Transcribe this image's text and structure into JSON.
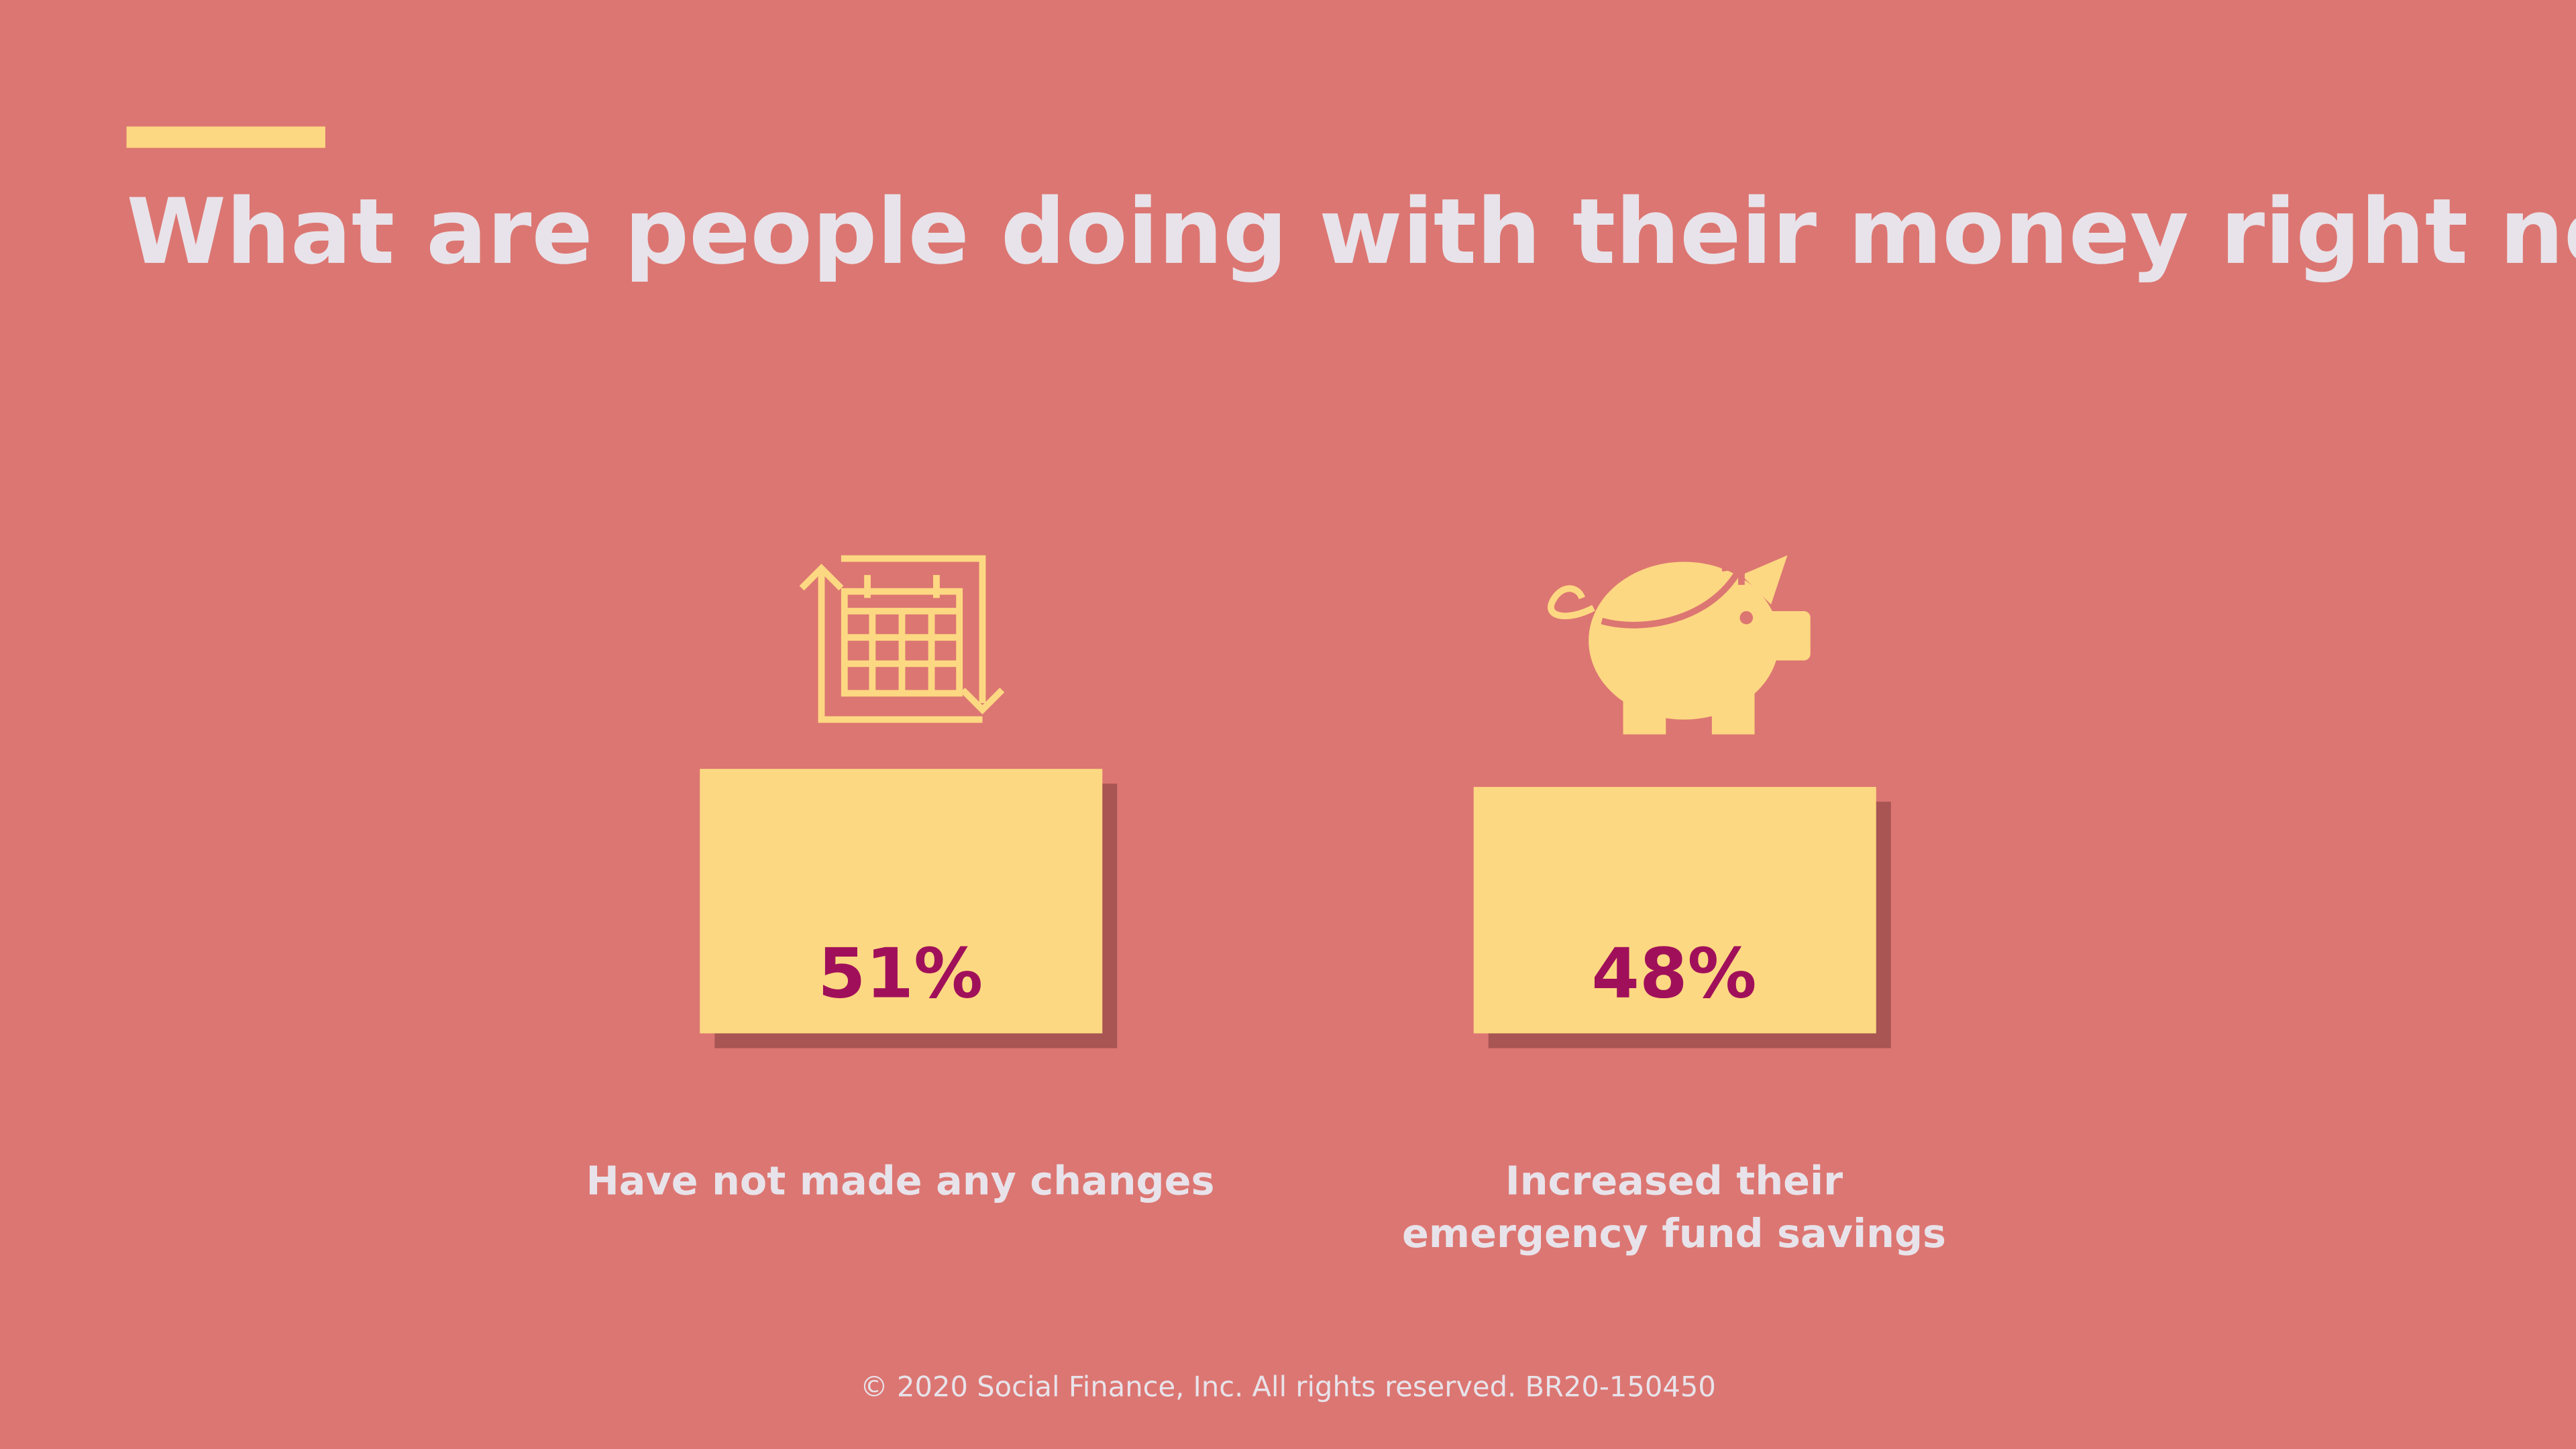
{
  "header": {
    "title": "What are people doing with their money right now?"
  },
  "stats": [
    {
      "value": "51%",
      "label": [
        "Have not made any changes"
      ]
    },
    {
      "value": "48%",
      "label": [
        "Increased their",
        "emergency fund savings"
      ]
    }
  ],
  "footer": {
    "text": "© 2020 Social Finance, Inc. All rights reserved. BR20-150450"
  }
}
